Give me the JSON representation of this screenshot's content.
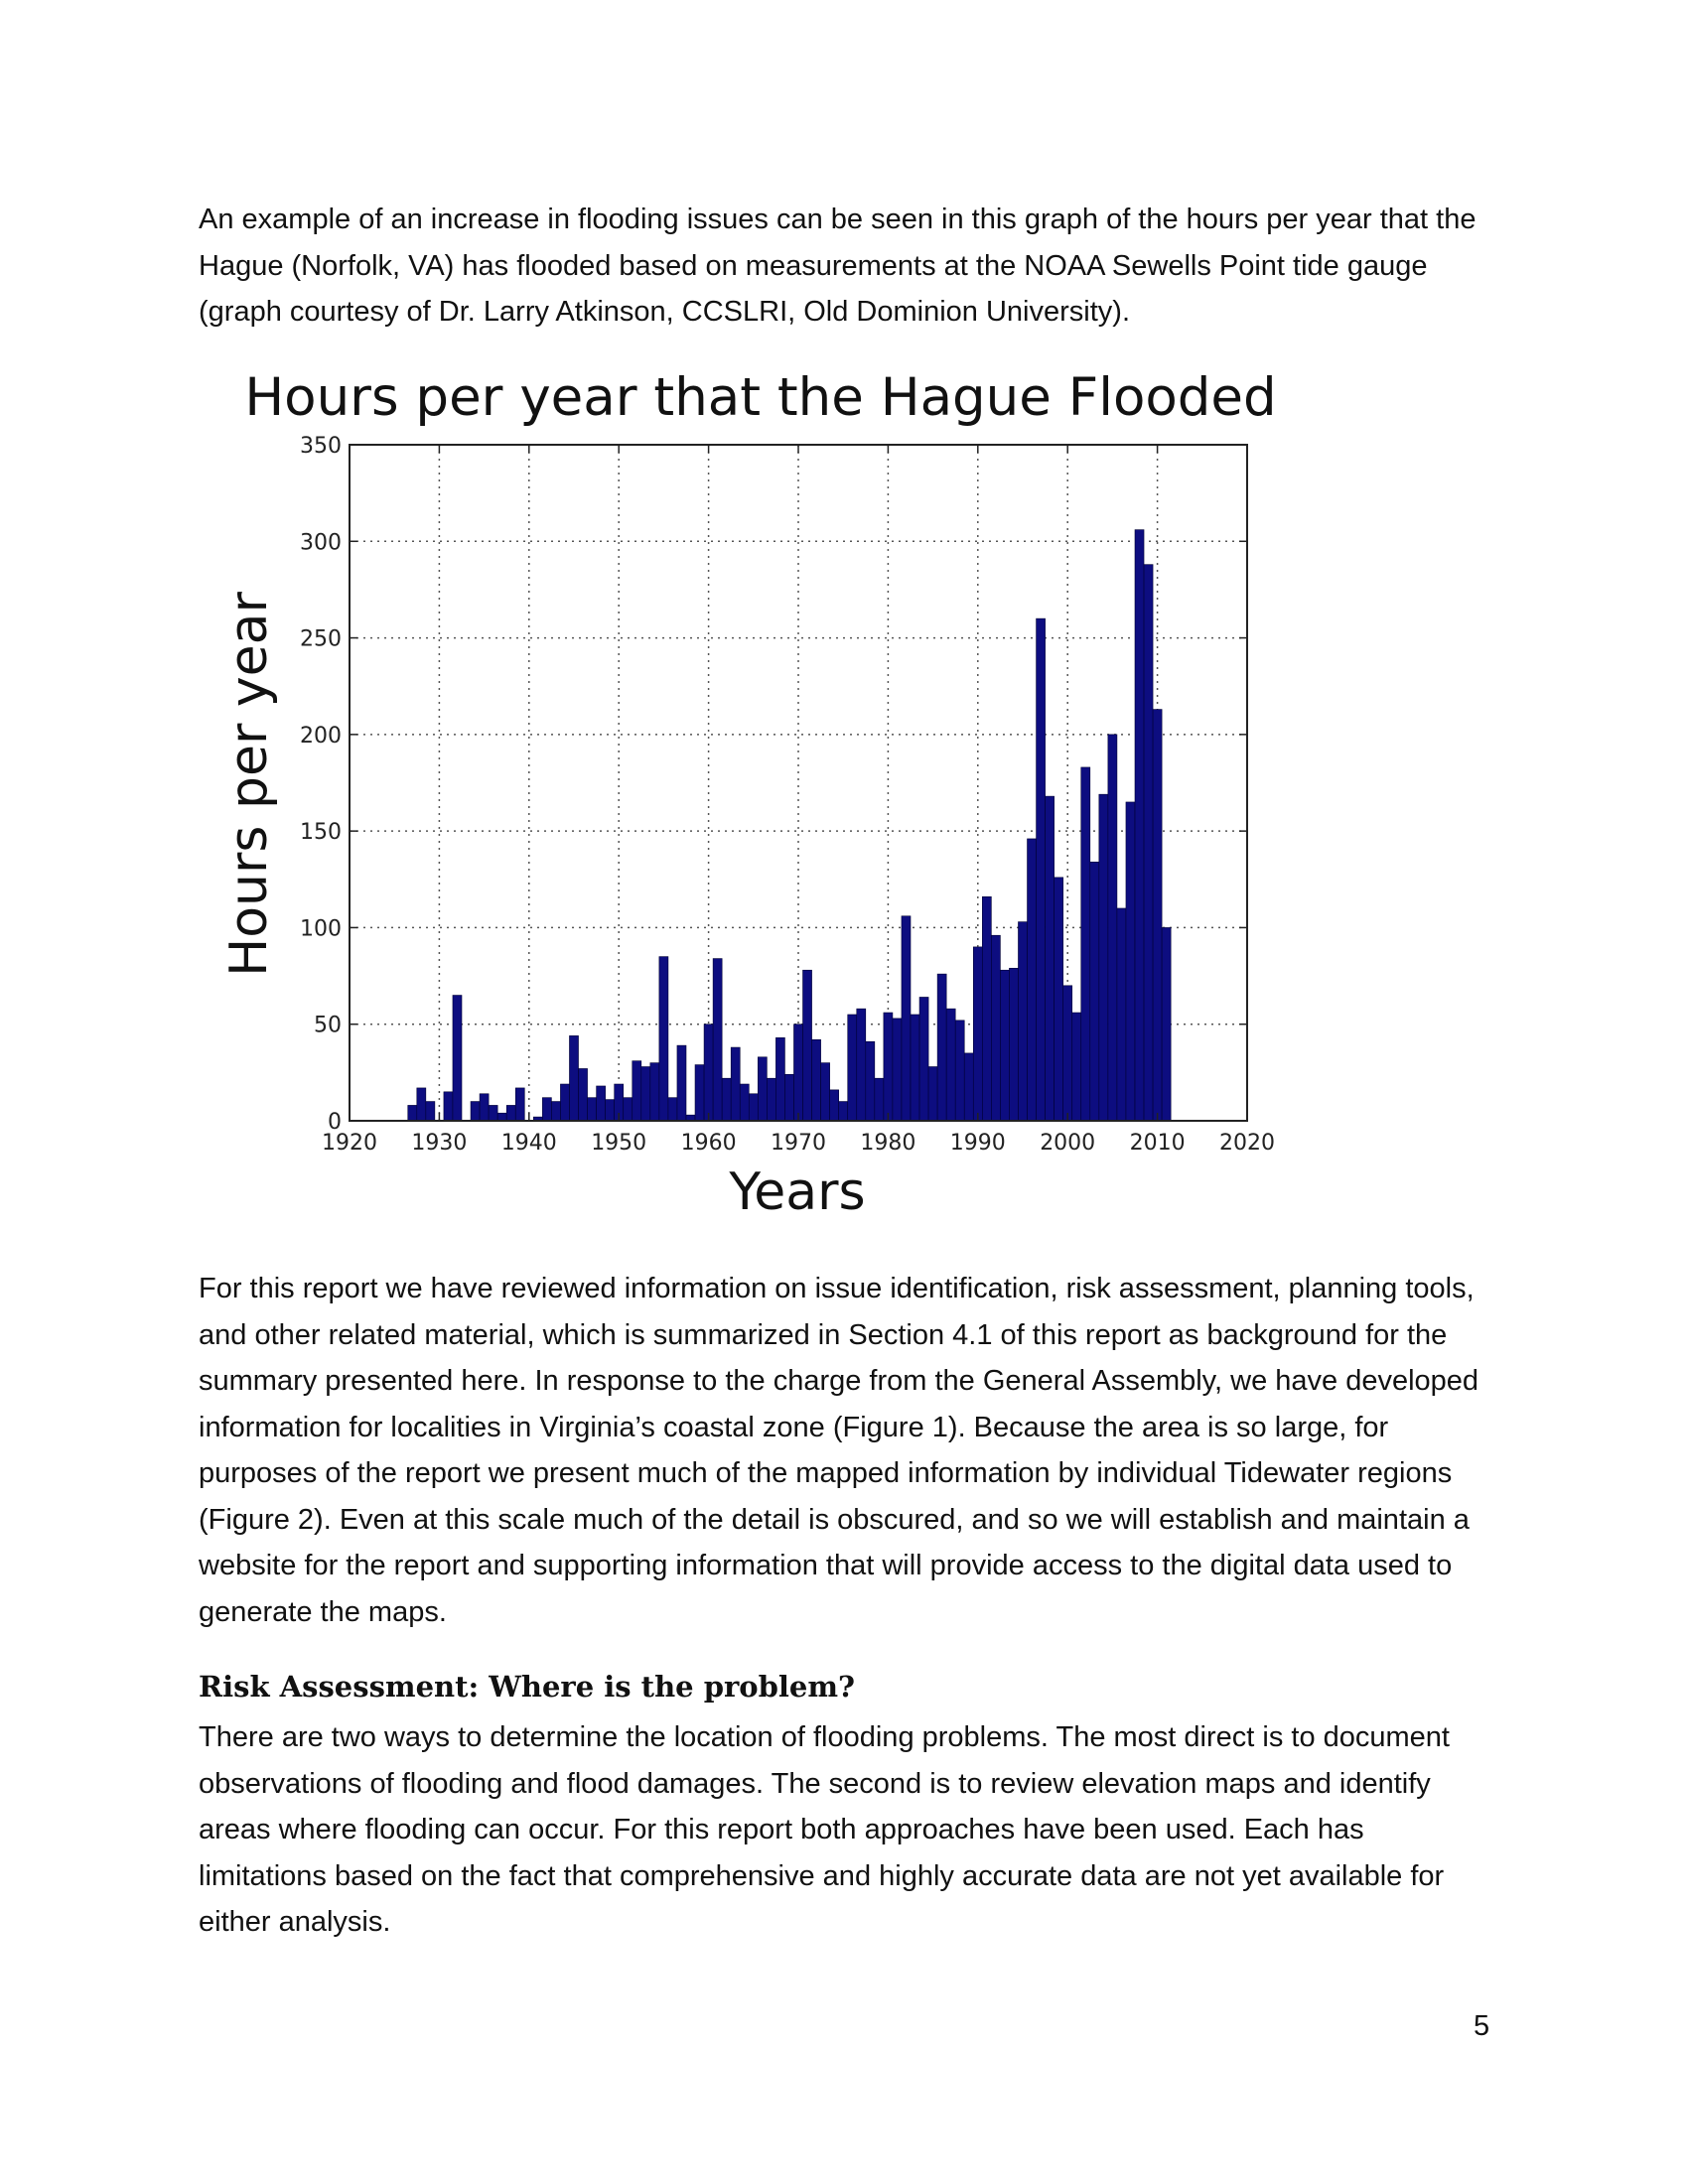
{
  "intro_paragraph": "An example of an increase in flooding issues can be seen in this graph of the hours per year that the Hague (Norfolk, VA) has flooded based on measurements at the NOAA Sewells Point tide gauge (graph courtesy of Dr. Larry Atkinson, CCSLRI, Old Dominion University).",
  "review_paragraph": "For this report we have reviewed information on issue identification, risk assessment, planning tools, and other related material, which is summarized in Section 4.1 of this report as background for the summary presented here.  In response to the charge from the General Assembly, we have developed information for localities in Virginia’s coastal zone (Figure 1).  Because the area is so large, for purposes of the report we present much of the mapped information by individual Tidewater regions (Figure 2).  Even at this scale much of the detail is obscured, and so we will establish and maintain a website for the report and supporting information that will provide access to the digital data used to generate the maps.",
  "risk_heading": "Risk Assessment:  Where is the problem?",
  "risk_paragraph": "There are two ways to determine the location of flooding problems.  The most direct is to document observations of flooding and flood damages.  The second is to review elevation maps and identify areas where flooding can occur.  For this report both approaches have been used.  Each has limitations based on the fact that comprehensive and highly accurate data are not yet available for either analysis.",
  "page_number": "5",
  "chart_data": {
    "type": "bar",
    "title": "Hours per year that the Hague Flooded",
    "xlabel": "Years",
    "ylabel": "Hours per year",
    "xlim": [
      1920,
      2020
    ],
    "ylim": [
      0,
      350
    ],
    "x_ticks": [
      1920,
      1930,
      1940,
      1950,
      1960,
      1970,
      1980,
      1990,
      2000,
      2010,
      2020
    ],
    "y_ticks": [
      0,
      50,
      100,
      150,
      200,
      250,
      300,
      350
    ],
    "grid": true,
    "bar_color": "#0d0d80",
    "x": [
      1927,
      1928,
      1929,
      1930,
      1931,
      1932,
      1933,
      1934,
      1935,
      1936,
      1937,
      1938,
      1939,
      1940,
      1941,
      1942,
      1943,
      1944,
      1945,
      1946,
      1947,
      1948,
      1949,
      1950,
      1951,
      1952,
      1953,
      1954,
      1955,
      1956,
      1957,
      1958,
      1959,
      1960,
      1961,
      1962,
      1963,
      1964,
      1965,
      1966,
      1967,
      1968,
      1969,
      1970,
      1971,
      1972,
      1973,
      1974,
      1975,
      1976,
      1977,
      1978,
      1979,
      1980,
      1981,
      1982,
      1983,
      1984,
      1985,
      1986,
      1987,
      1988,
      1989,
      1990,
      1991,
      1992,
      1993,
      1994,
      1995,
      1996,
      1997,
      1998,
      1999,
      2000,
      2001,
      2002,
      2003,
      2004,
      2005,
      2006,
      2007,
      2008,
      2009,
      2010,
      2011,
      2012
    ],
    "values": [
      8,
      17,
      10,
      0,
      15,
      65,
      0,
      10,
      14,
      8,
      4,
      8,
      17,
      0,
      2,
      12,
      10,
      19,
      44,
      27,
      12,
      18,
      11,
      19,
      12,
      31,
      28,
      30,
      85,
      12,
      39,
      3,
      29,
      50,
      84,
      22,
      38,
      19,
      14,
      33,
      22,
      43,
      24,
      50,
      78,
      42,
      30,
      16,
      10,
      55,
      58,
      41,
      22,
      56,
      53,
      106,
      55,
      64,
      28,
      76,
      58,
      52,
      35,
      90,
      116,
      96,
      78,
      79,
      103,
      146,
      260,
      168,
      126,
      70,
      56,
      183,
      134,
      169,
      200,
      110,
      165,
      306,
      288,
      213,
      100,
      0
    ]
  }
}
